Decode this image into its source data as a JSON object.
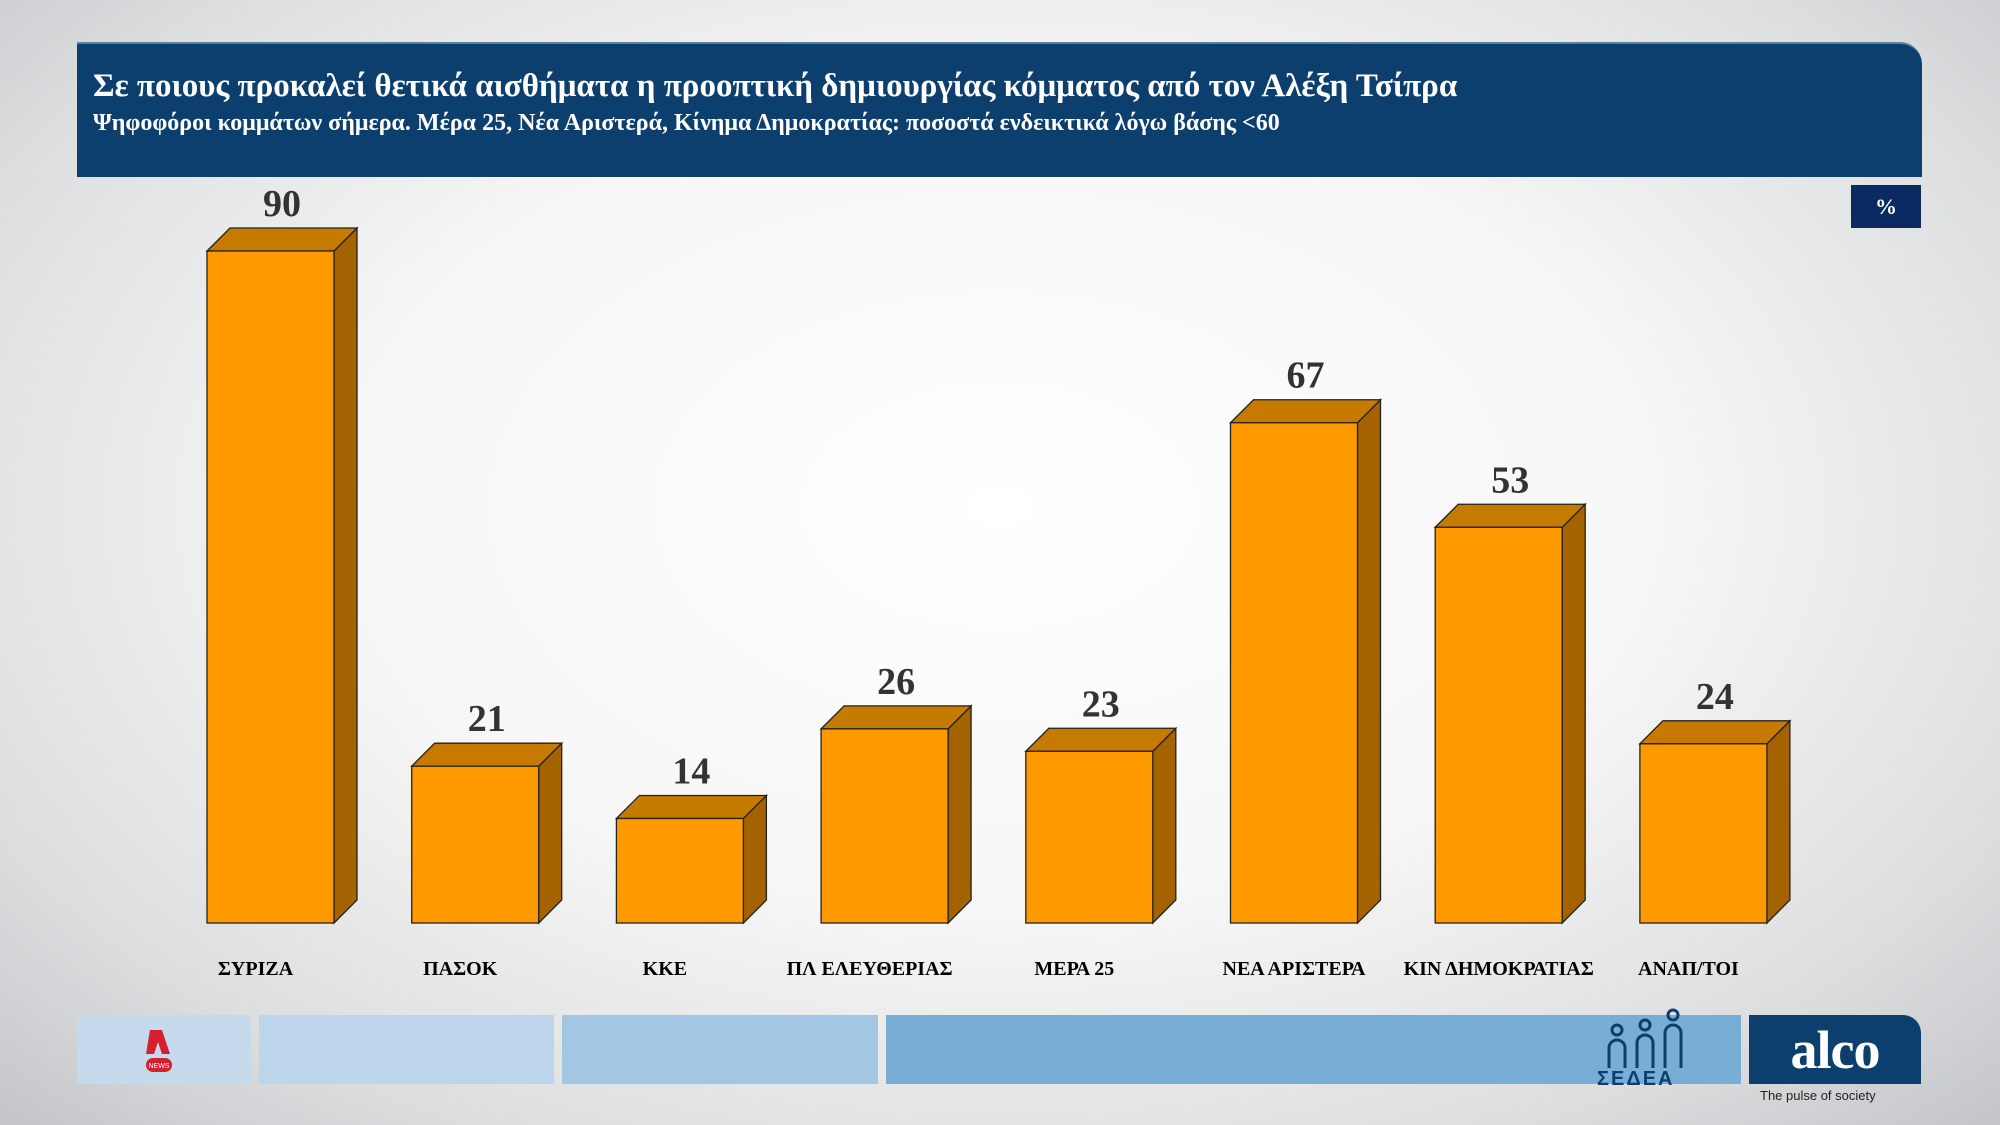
{
  "header": {
    "title": "Σε ποιους προκαλεί θετικά αισθήματα η προοπτική δημιουργίας κόμματος από τον Αλέξη Τσίπρα",
    "subtitle": "Ψηφοφόροι κομμάτων σήμερα. Μέρα 25, Νέα Αριστερά, Κίνημα Δημοκρατίας: ποσοστά ενδεικτικά λόγω βάσης <60"
  },
  "chart_data": {
    "type": "bar",
    "style": "3d-column",
    "unit_label": "%",
    "categories": [
      "ΣΥΡΙΖΑ",
      "ΠΑΣΟΚ",
      "ΚΚΕ",
      "ΠΛ ΕΛΕΥΘΕΡΙΑΣ",
      "ΜΕΡΑ 25",
      "ΝΕΑ ΑΡΙΣΤΕΡΑ",
      "ΚΙΝ ΔΗΜΟΚΡΑΤΙΑΣ",
      "ΑΝΑΠ/ΤΟΙ"
    ],
    "values": [
      90,
      21,
      14,
      26,
      23,
      67,
      53,
      24
    ],
    "ylim": [
      0,
      90
    ],
    "grid": false,
    "colors": {
      "front": "#FF9900",
      "top": "#C77A00",
      "side": "#A56300",
      "label": "#333333"
    }
  },
  "footer": {
    "brand": "alco",
    "tagline": "The pulse of society",
    "sedea": "ΣΕΔΕΑ",
    "alpha_logo": "ALPHA NEWS"
  }
}
